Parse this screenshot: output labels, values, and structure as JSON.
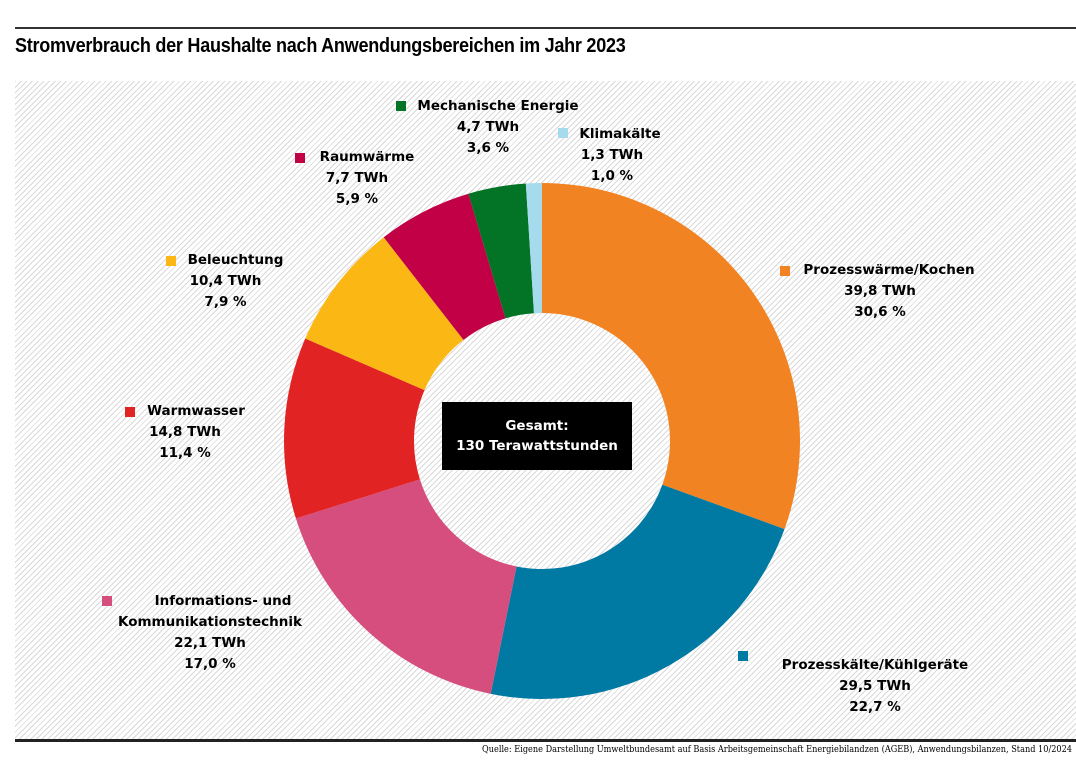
{
  "chart_data": {
    "type": "pie",
    "variant": "donut",
    "title": "Stromverbrauch der Haushalte nach Anwendungsbereichen im Jahr 2023",
    "unit": "TWh",
    "total_label": "Gesamt:",
    "total_value_label": "130  Terawattstunden",
    "total": 130,
    "start_angle": "12 o'clock",
    "direction": "clockwise",
    "series": [
      {
        "name": "Prozesswärme/Kochen",
        "value": 39.8,
        "value_label": "39,8 TWh",
        "percent": 30.6,
        "percent_label": "30,6 %",
        "color": "#F28322"
      },
      {
        "name": "Prozesskälte/Kühlgeräte",
        "value": 29.5,
        "value_label": "29,5 TWh",
        "percent": 22.7,
        "percent_label": "22,7 %",
        "color": "#0079A3"
      },
      {
        "name": "Informations- und Kommunikationstechnik",
        "name_lines": [
          "Informations- und",
          "Kommunikationstechnik"
        ],
        "value": 22.1,
        "value_label": "22,1 TWh",
        "percent": 17.0,
        "percent_label": "17,0 %",
        "color": "#D64E7E"
      },
      {
        "name": "Warmwasser",
        "value": 14.8,
        "value_label": "14,8 TWh",
        "percent": 11.4,
        "percent_label": "11,4 %",
        "color": "#E22323"
      },
      {
        "name": "Beleuchtung",
        "value": 10.4,
        "value_label": "10,4 TWh",
        "percent": 7.9,
        "percent_label": "7,9 %",
        "color": "#FBB814"
      },
      {
        "name": "Raumwärme",
        "value": 7.7,
        "value_label": "7,7 TWh",
        "percent": 5.9,
        "percent_label": "5,9 %",
        "color": "#C20046"
      },
      {
        "name": "Mechanische Energie",
        "value": 4.7,
        "value_label": "4,7 TWh",
        "percent": 3.6,
        "percent_label": "3,6 %",
        "color": "#037325"
      },
      {
        "name": "Klimakälte",
        "value": 1.3,
        "value_label": "1,3 TWh",
        "percent": 1.0,
        "percent_label": "1,0 %",
        "color": "#A5DBEC"
      }
    ],
    "source": "Quelle: Eigene Darstellung Umweltbundesamt auf Basis Arbeitsgemeinschaft Energiebilandzen (AGEB), Anwendungsbilanzen, Stand 10/2024"
  }
}
